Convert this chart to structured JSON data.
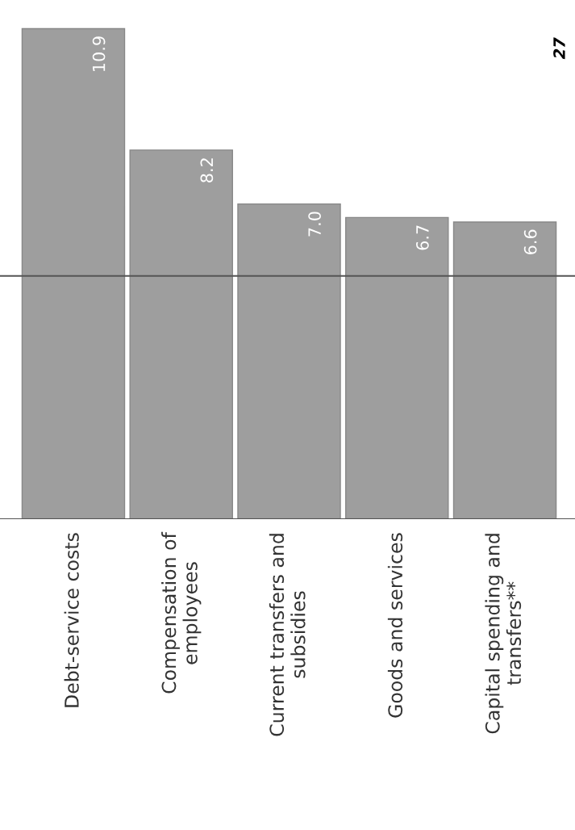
{
  "chart_data": {
    "type": "bar",
    "categories": [
      "Debt-service costs",
      "Compensation of\nemployees",
      "Current transfers and\nsubsidies",
      "Goods and services",
      "Capital spending and\ntransfers**"
    ],
    "values": [
      10.9,
      8.2,
      7.0,
      6.7,
      6.6
    ],
    "color": "#9e9e9e",
    "value_labels": [
      "10.9",
      "8.2",
      "7.0",
      "6.7",
      "6.6"
    ],
    "tick_labels": "x",
    "ref_lines": [
      {
        "axis": "y",
        "value": 5.4,
        "color": "#555555"
      }
    ],
    "annotations": [
      "27"
    ],
    "grid": false,
    "legend": false
  }
}
